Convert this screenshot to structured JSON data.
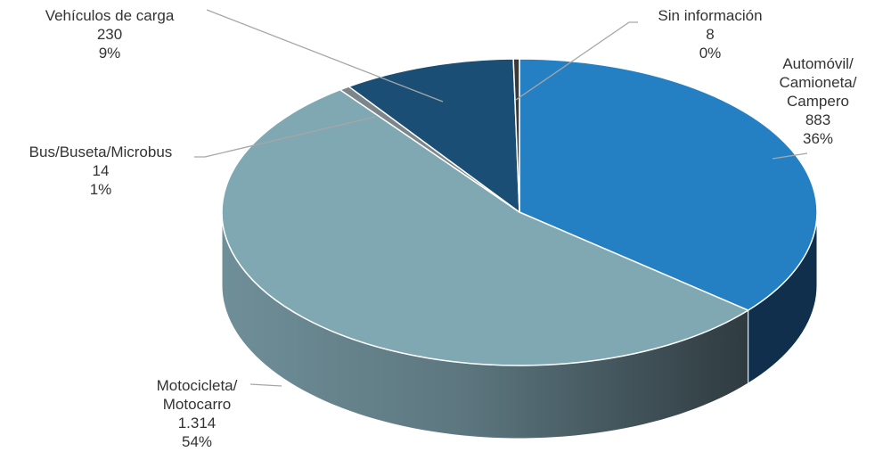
{
  "chart_data": {
    "type": "pie",
    "title": "",
    "slices": [
      {
        "key": "auto",
        "label_lines": [
          "Automóvil/",
          "Camioneta/",
          "Campero"
        ],
        "value_label": "883",
        "value": 883,
        "percent_label": "36%",
        "color": "#2580c3",
        "side_color": "#0f2f4c"
      },
      {
        "key": "moto",
        "label_lines": [
          "Motocicleta/",
          "Motocarro"
        ],
        "value_label": "1.314",
        "value": 1314,
        "percent_label": "54%",
        "color": "#7fa8b2",
        "side_color": "#4d6d78"
      },
      {
        "key": "bus",
        "label_lines": [
          "Bus/Buseta/Microbus"
        ],
        "value_label": "14",
        "value": 14,
        "percent_label": "1%",
        "color": "#7c8589",
        "side_color": "#3f474a"
      },
      {
        "key": "carga",
        "label_lines": [
          "Vehículos de carga"
        ],
        "value_label": "230",
        "value": 230,
        "percent_label": "9%",
        "color": "#1b4e74",
        "side_color": "#0d2a40"
      },
      {
        "key": "sininfo",
        "label_lines": [
          "Sin información"
        ],
        "value_label": "8",
        "value": 8,
        "percent_label": "0%",
        "color": "#3a3a3a",
        "side_color": "#222222"
      }
    ],
    "legend": "none",
    "style": "3d-exploded-none"
  }
}
